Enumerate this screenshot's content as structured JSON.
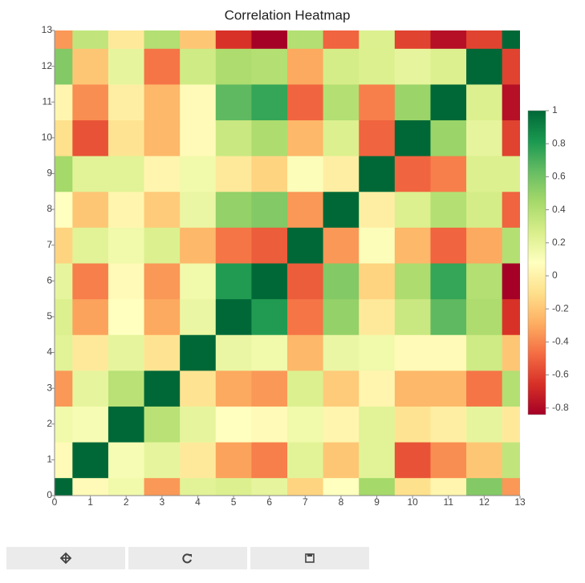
{
  "chart_data": {
    "type": "heatmap",
    "title": "Correlation Heatmap",
    "x": [
      0,
      1,
      2,
      3,
      4,
      5,
      6,
      7,
      8,
      9,
      10,
      11,
      12,
      13
    ],
    "y": [
      0,
      1,
      2,
      3,
      4,
      5,
      6,
      7,
      8,
      9,
      10,
      11,
      12,
      13
    ],
    "z": [
      [
        1,
        0.05,
        0.15,
        -0.35,
        0.22,
        0.25,
        0.2,
        -0.15,
        0.08,
        0.45,
        -0.1,
        0.02,
        0.55,
        -0.35
      ],
      [
        0.05,
        1,
        0.12,
        0.2,
        -0.05,
        -0.32,
        -0.42,
        0.22,
        -0.2,
        0.22,
        -0.55,
        -0.38,
        -0.2,
        0.35
      ],
      [
        0.15,
        0.12,
        1,
        0.38,
        0.2,
        0.08,
        0.05,
        0.15,
        0.02,
        0.22,
        -0.08,
        -0.02,
        0.2,
        -0.05
      ],
      [
        -0.35,
        0.2,
        0.38,
        1,
        -0.08,
        -0.3,
        -0.35,
        0.25,
        -0.18,
        0.02,
        -0.25,
        -0.25,
        -0.45,
        0.4
      ],
      [
        0.22,
        -0.05,
        0.2,
        -0.08,
        1,
        0.18,
        0.15,
        -0.25,
        0.18,
        0.15,
        0.05,
        0.05,
        0.3,
        -0.2
      ],
      [
        0.25,
        -0.32,
        0.08,
        -0.3,
        0.18,
        1,
        0.8,
        -0.45,
        0.5,
        -0.05,
        0.32,
        0.65,
        0.42,
        -0.65
      ],
      [
        0.2,
        -0.42,
        0.05,
        -0.35,
        0.15,
        0.8,
        1,
        -0.52,
        0.55,
        -0.15,
        0.42,
        0.75,
        0.4,
        -0.84
      ],
      [
        -0.15,
        0.22,
        0.15,
        0.25,
        -0.25,
        -0.45,
        -0.52,
        1,
        -0.35,
        0.1,
        -0.25,
        -0.5,
        -0.3,
        0.4
      ],
      [
        0.08,
        -0.2,
        0.02,
        -0.18,
        0.18,
        0.5,
        0.55,
        -0.35,
        1,
        -0.02,
        0.25,
        0.4,
        0.28,
        -0.5
      ],
      [
        0.45,
        0.22,
        0.22,
        0.02,
        0.15,
        -0.05,
        -0.15,
        0.1,
        -0.02,
        1,
        -0.5,
        -0.42,
        0.25,
        0.25
      ],
      [
        -0.1,
        -0.55,
        -0.08,
        -0.25,
        0.05,
        0.32,
        0.42,
        -0.25,
        0.25,
        -0.5,
        1,
        0.48,
        0.2,
        -0.6
      ],
      [
        0.02,
        -0.38,
        -0.02,
        -0.25,
        0.05,
        0.65,
        0.75,
        -0.5,
        0.4,
        -0.42,
        0.48,
        1,
        0.25,
        -0.78
      ],
      [
        0.55,
        -0.2,
        0.2,
        -0.45,
        0.3,
        0.42,
        0.4,
        -0.3,
        0.28,
        0.25,
        0.2,
        0.25,
        1,
        -0.6
      ],
      [
        -0.35,
        0.35,
        -0.05,
        0.4,
        -0.2,
        -0.65,
        -0.84,
        0.4,
        -0.5,
        0.25,
        -0.6,
        -0.78,
        -0.6,
        1
      ]
    ],
    "xlim": [
      0,
      13
    ],
    "ylim": [
      0,
      13
    ],
    "xticks": [
      0,
      1,
      2,
      3,
      4,
      5,
      6,
      7,
      8,
      9,
      10,
      11,
      12,
      13
    ],
    "yticks": [
      0,
      1,
      2,
      3,
      4,
      5,
      6,
      7,
      8,
      9,
      10,
      11,
      12,
      13
    ],
    "zlim": [
      -0.84,
      1
    ],
    "zticks": [
      -0.8,
      -0.6,
      -0.4,
      -0.2,
      0,
      0.2,
      0.4,
      0.6,
      0.8,
      1
    ],
    "colorscale": [
      "#a50026",
      "#d73027",
      "#f46d43",
      "#fdae61",
      "#fee08b",
      "#ffffbf",
      "#d9ef8b",
      "#a6d96a",
      "#66bd63",
      "#1a9850",
      "#006837"
    ]
  }
}
